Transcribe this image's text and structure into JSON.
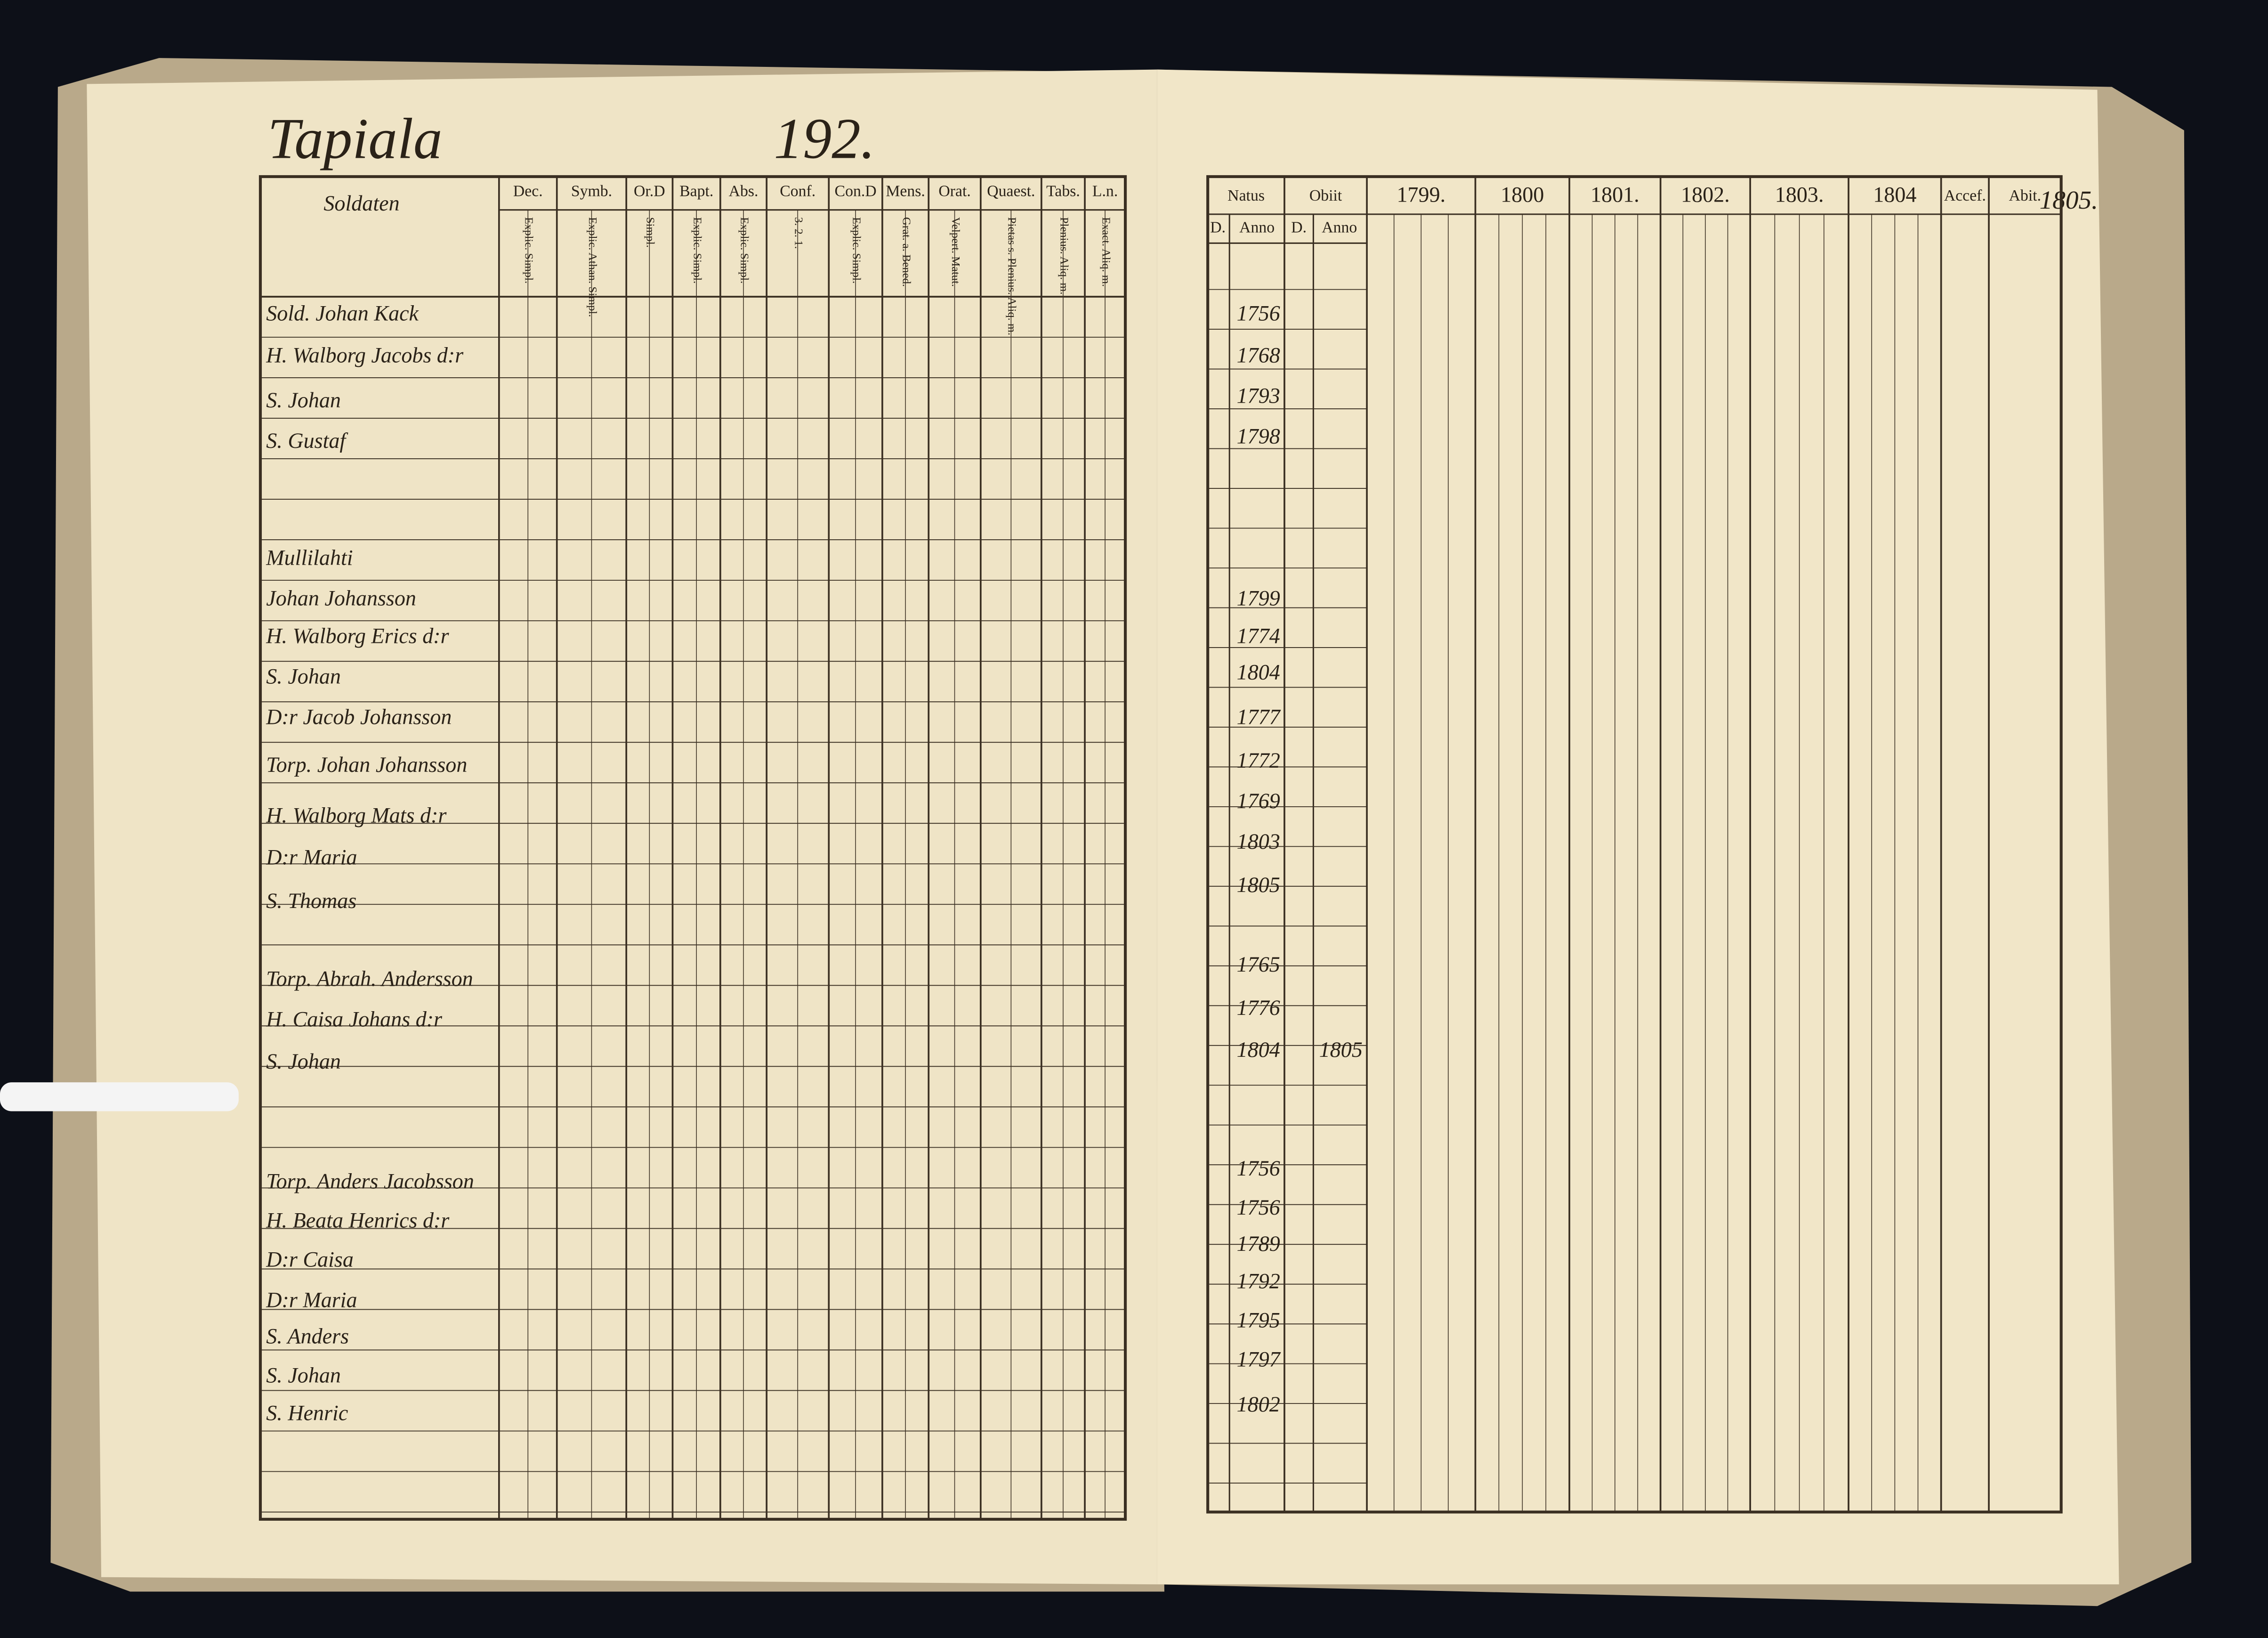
{
  "left_page": {
    "place": "Tapiala",
    "page_number": "192.",
    "headers": [
      "Soldaten",
      "Dec.",
      "Symb.",
      "Or.D",
      "Bapt.",
      "Abs.",
      "Conf.",
      "Con.D",
      "Mens.",
      "Orat.",
      "Quaest.",
      "Tabs.",
      "L.n."
    ],
    "subheaders": [
      "Explic. Simpl.",
      "Explic. Athan. Simpl.",
      "Simpl.",
      "Explic. Simpl.",
      "Explic. Simpl.",
      "3. 2. 1.",
      "Explic. Simpl.",
      "Grat. a. Bened.",
      "Velpert. Matut.",
      "Pietas s. Plenius. Aliq. m.",
      "Plenius. Aliq. m.",
      "Exact. Aliq. m."
    ],
    "entries": [
      "Sold. Johan Kack",
      "H. Walborg Jacobs d:r",
      "S. Johan",
      "S. Gustaf",
      "Mullilahti",
      "Johan Johansson",
      "H. Walborg Erics d:r",
      "S. Johan",
      "D:r Jacob Johansson",
      "Torp. Johan Johansson",
      "H. Walborg Mats d:r",
      "D:r Maria",
      "S. Thomas",
      "Torp. Abrah. Andersson",
      "H. Caisa Johans d:r",
      "S. Johan",
      "Torp. Anders Jacobsson",
      "H. Beata Henrics d:r",
      "D:r Caisa",
      "D:r Maria",
      "S. Anders",
      "S. Johan",
      "S. Henric"
    ]
  },
  "right_page": {
    "headers": [
      "Natus",
      "Obiit",
      "1799.",
      "1800",
      "1801.",
      "1802.",
      "1803.",
      "1804",
      "Accef.",
      "Abit."
    ],
    "subheaders": [
      "D.",
      "Anno",
      "D.",
      "Anno"
    ],
    "born": [
      "1756",
      "1768",
      "1793",
      "1798",
      "1799",
      "1774",
      "1804",
      "1777",
      "1772",
      "1769",
      "1803",
      "1805",
      "1765",
      "1776",
      "1804",
      "1756",
      "1756",
      "1789",
      "1792",
      "1795",
      "1797",
      "1802"
    ],
    "died": "1805",
    "corner": "1805."
  }
}
